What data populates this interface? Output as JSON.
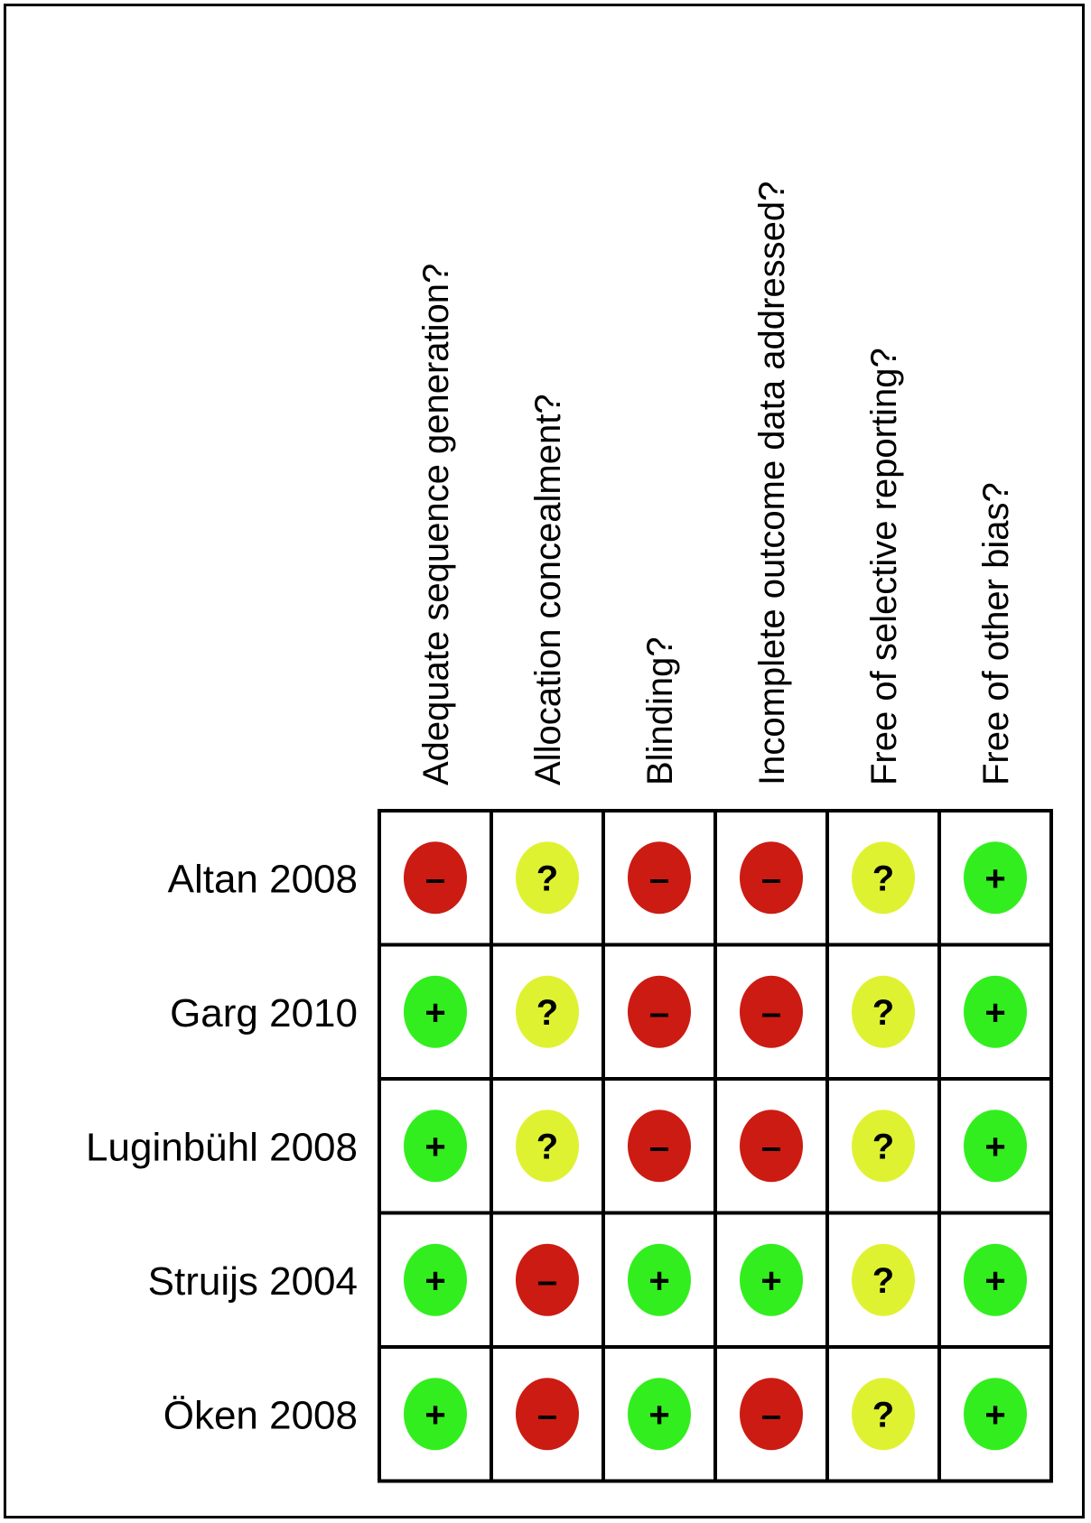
{
  "chart_data": {
    "type": "table",
    "columns": [
      "Adequate sequence generation?",
      "Allocation concealment?",
      "Blinding?",
      "Incomplete outcome data addressed?",
      "Free of selective reporting?",
      "Free of other bias?"
    ],
    "rows": [
      {
        "study": "Altan 2008",
        "judgements": [
          "-",
          "?",
          "-",
          "-",
          "?",
          "+"
        ]
      },
      {
        "study": "Garg 2010",
        "judgements": [
          "+",
          "?",
          "-",
          "-",
          "?",
          "+"
        ]
      },
      {
        "study": "Luginbühl 2008",
        "judgements": [
          "+",
          "?",
          "-",
          "-",
          "?",
          "+"
        ]
      },
      {
        "study": "Struijs 2004",
        "judgements": [
          "+",
          "-",
          "+",
          "+",
          "?",
          "+"
        ]
      },
      {
        "study": "Öken 2008",
        "judgements": [
          "+",
          "-",
          "+",
          "-",
          "?",
          "+"
        ]
      }
    ],
    "symbol_labels": {
      "+": "+",
      "-": "–",
      "?": "?"
    },
    "colors": {
      "+": "#33ee1f",
      "-": "#cc1b12",
      "?": "#dff232"
    }
  }
}
